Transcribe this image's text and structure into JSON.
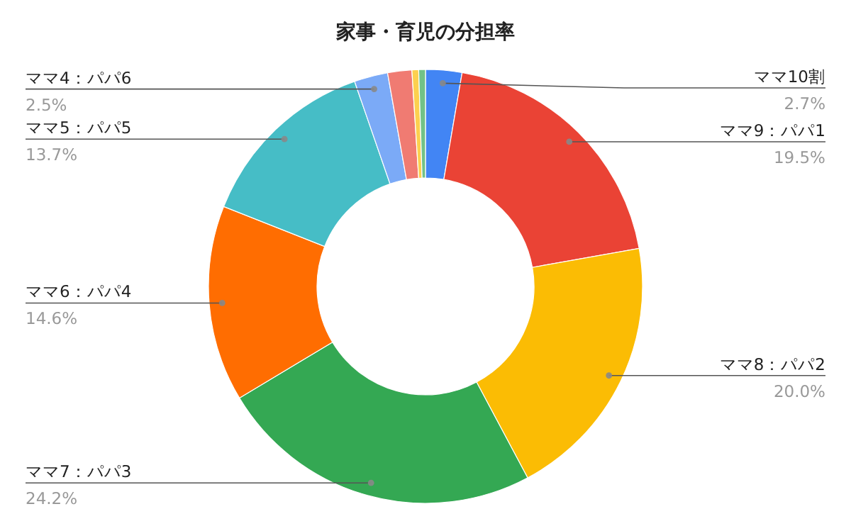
{
  "chart_data": {
    "type": "donut",
    "title": "家事・育児の分担率",
    "categories": [
      "ママ10割",
      "ママ9：パパ1",
      "ママ8：パパ2",
      "ママ7：パパ3",
      "ママ6：パパ4",
      "ママ5：パパ5",
      "ママ4：パパ6",
      null,
      null,
      null
    ],
    "values": [
      2.7,
      19.5,
      20.0,
      24.2,
      14.6,
      13.7,
      2.5,
      1.8,
      0.5,
      0.5
    ],
    "value_labels": [
      "2.7%",
      "19.5%",
      "20.0%",
      "24.2%",
      "14.6%",
      "13.7%",
      "2.5%",
      null,
      null,
      null
    ],
    "colors": [
      "#4285f4",
      "#ea4335",
      "#fbbc04",
      "#34a853",
      "#ff6d01",
      "#46bdc6",
      "#7baaf7",
      "#f07b72",
      "#fcd04f",
      "#71c287"
    ]
  }
}
